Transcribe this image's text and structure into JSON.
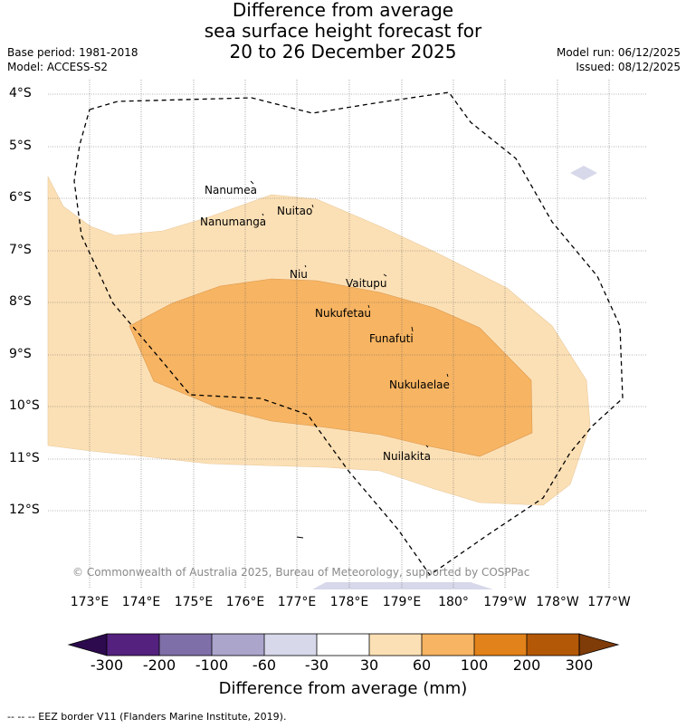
{
  "title": {
    "line1": "Difference from average",
    "line2": "sea surface height forecast for",
    "line3": "20 to 26 December 2025"
  },
  "meta": {
    "base_period": "Base period: 1981-2018",
    "model": "Model: ACCESS-S2",
    "model_run": "Model run: 06/12/2025",
    "issued": "Issued: 08/12/2025"
  },
  "axes": {
    "latitudes": [
      "4°S",
      "5°S",
      "6°S",
      "7°S",
      "8°S",
      "9°S",
      "10°S",
      "11°S",
      "12°S"
    ],
    "longitudes": [
      "173°E",
      "174°E",
      "175°E",
      "176°E",
      "177°E",
      "178°E",
      "179°E",
      "180°",
      "179°W",
      "178°W",
      "177°W"
    ]
  },
  "islands": [
    "Nanumea",
    "Nuitao",
    "Nanumanga",
    "Niu",
    "Vaitupu",
    "Nukufetau",
    "Funafuti",
    "Nukulaelae",
    "Nuilakita"
  ],
  "copyright": "© Commonwealth of Australia 2025, Bureau of Meteorology, supported by COSPPac",
  "colorbar": {
    "ticks": [
      "-300",
      "-200",
      "-100",
      "-60",
      "-30",
      "30",
      "60",
      "100",
      "200",
      "300"
    ],
    "colors": [
      "#2d0a4e",
      "#54217f",
      "#7f6fa8",
      "#aba5cc",
      "#d7d8ea",
      "#ffffff",
      "#fce0b5",
      "#f7b462",
      "#e2821a",
      "#b35806",
      "#7f3b08"
    ],
    "title": "Difference from average (mm)"
  },
  "legend": {
    "eez": "--  --  -- EEZ border V11 (Flanders Marine Institute, 2019)."
  },
  "map_style": {
    "light_band_color": "#fce0b5",
    "dark_band_color": "#f7b462",
    "low_band_color": "#d7d8ea"
  }
}
